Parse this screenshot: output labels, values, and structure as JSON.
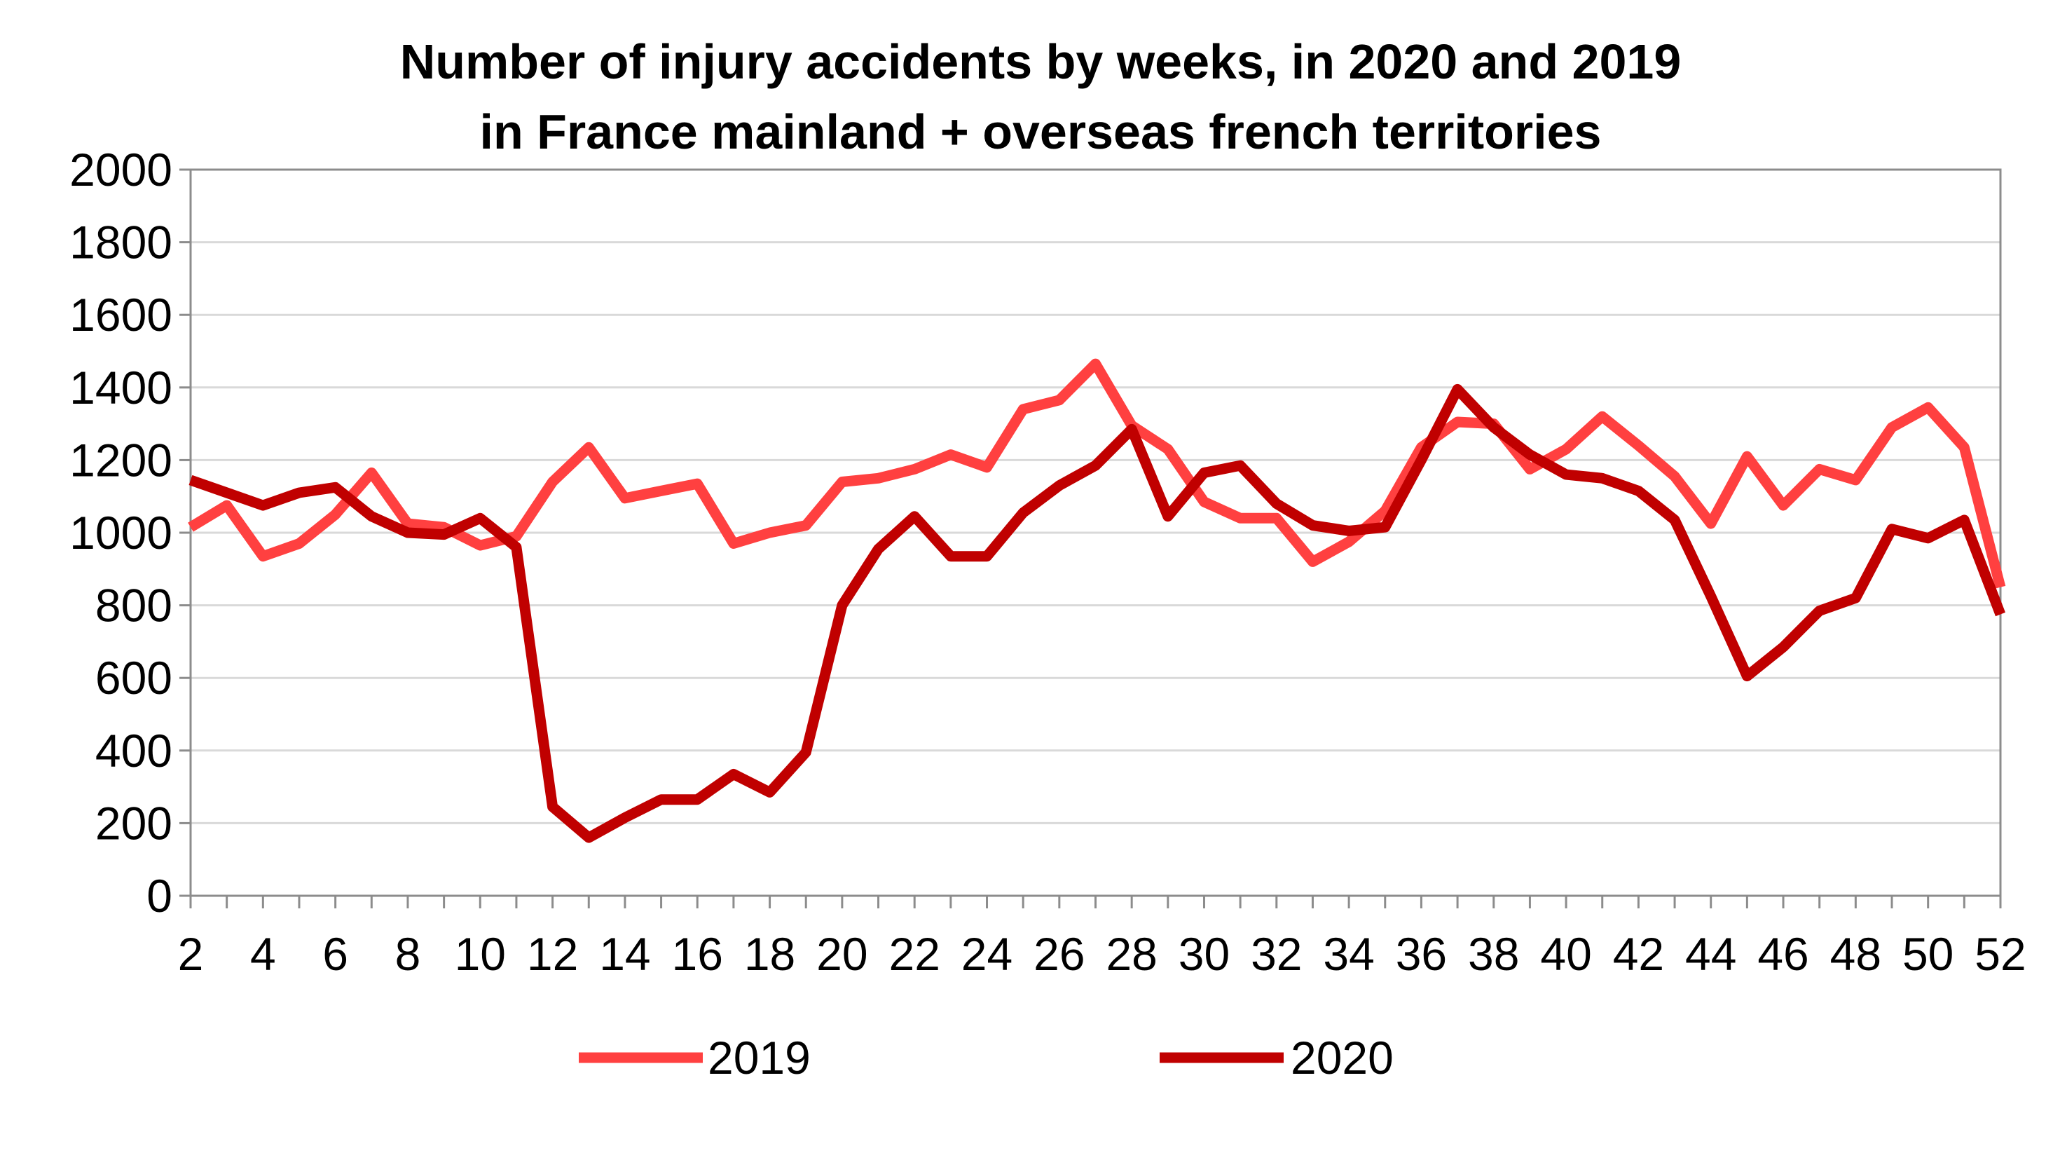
{
  "chart_data": {
    "type": "line",
    "title": [
      "Number of injury accidents by weeks, in 2020 and 2019",
      "in France mainland + overseas french territories"
    ],
    "xlabel": "",
    "ylabel": "",
    "x": [
      2,
      3,
      4,
      5,
      6,
      7,
      8,
      9,
      10,
      11,
      12,
      13,
      14,
      15,
      16,
      17,
      18,
      19,
      20,
      21,
      22,
      23,
      24,
      25,
      26,
      27,
      28,
      29,
      30,
      31,
      32,
      33,
      34,
      35,
      36,
      37,
      38,
      39,
      40,
      41,
      42,
      43,
      44,
      45,
      46,
      47,
      48,
      49,
      50,
      51,
      52
    ],
    "x_tick_labels": [
      "2",
      "4",
      "6",
      "8",
      "10",
      "12",
      "14",
      "16",
      "18",
      "20",
      "22",
      "24",
      "26",
      "28",
      "30",
      "32",
      "34",
      "36",
      "38",
      "40",
      "42",
      "44",
      "46",
      "48",
      "50",
      "52"
    ],
    "ylim": [
      0,
      2000
    ],
    "y_ticks": [
      0,
      200,
      400,
      600,
      800,
      1000,
      1200,
      1400,
      1600,
      1800,
      2000
    ],
    "grid": true,
    "legend_position": "bottom",
    "series": [
      {
        "name": "2019",
        "color": "#ff4040",
        "values": [
          1015,
          1075,
          935,
          970,
          1050,
          1165,
          1025,
          1015,
          965,
          990,
          1140,
          1235,
          1095,
          1115,
          1135,
          970,
          1000,
          1020,
          1140,
          1150,
          1175,
          1215,
          1180,
          1340,
          1365,
          1465,
          1295,
          1230,
          1085,
          1040,
          1040,
          920,
          975,
          1060,
          1235,
          1305,
          1300,
          1175,
          1230,
          1320,
          1240,
          1155,
          1025,
          1210,
          1075,
          1175,
          1145,
          1290,
          1345,
          1235,
          850
        ]
      },
      {
        "name": "2020",
        "color": "#c00000",
        "values": [
          1145,
          1110,
          1075,
          1110,
          1125,
          1045,
          1000,
          995,
          1040,
          960,
          245,
          160,
          215,
          265,
          265,
          335,
          285,
          395,
          800,
          955,
          1045,
          935,
          935,
          1055,
          1130,
          1185,
          1285,
          1045,
          1165,
          1185,
          1080,
          1020,
          1005,
          1015,
          1200,
          1395,
          1290,
          1215,
          1160,
          1150,
          1115,
          1035,
          825,
          605,
          685,
          785,
          820,
          1010,
          985,
          1035,
          775
        ]
      }
    ]
  }
}
